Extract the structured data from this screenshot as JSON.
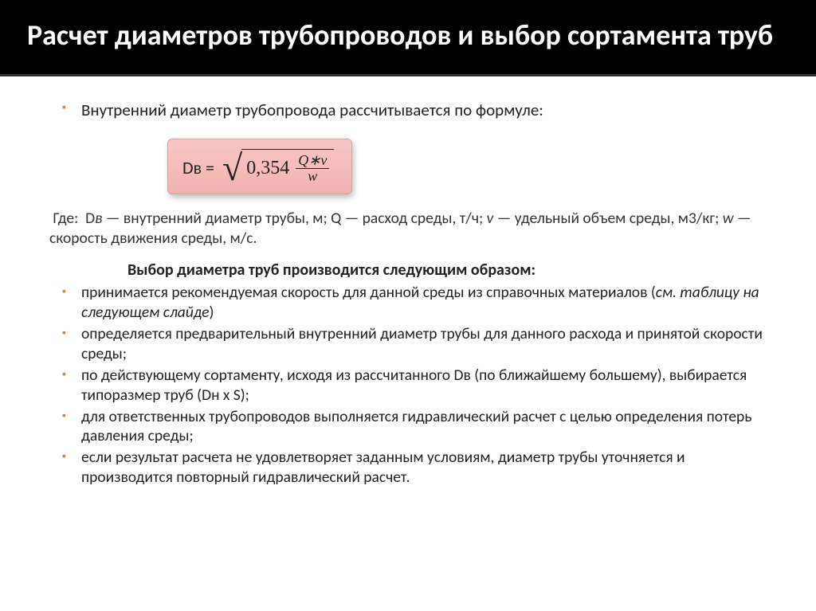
{
  "title": "Расчет диаметров трубопроводов и выбор сортамента труб",
  "intro": "Внутренний диаметр трубопровода рассчитывается по формуле:",
  "formula": {
    "lhs": "Dв =",
    "coef": "0,354",
    "num": "Q∗v",
    "den": "w"
  },
  "where_text": "Где:  Dв — внутренний диаметр трубы, м; Q — расход среды, т/ч; v — удельный объем среды, м3/кг; w — скорость движения среды, м/с.",
  "subhead": "Выбор диаметра труб производится следующим образом:",
  "steps": [
    "принимается рекомендуемая скорость для данной среды из справочных материалов (см. таблицу на следующем слайде)",
    "определяется предварительный внутренний диаметр трубы для данного расхода и принятой скорости среды;",
    "по действующему сортаменту, исходя из рассчитанного Dв (по ближайшему большему), выбирается типоразмер труб (Dн x S);",
    "для ответственных трубопроводов выполняется гидравлический расчет с целью определения потерь давления среды;",
    " если результат расчета не удовлетворяет заданным условиям, диаметр трубы уточняется и производится повторный гидравлический расчет."
  ],
  "colors": {
    "title_bg": "#000000",
    "title_fg": "#ffffff",
    "bullet": "#d68a2f",
    "formula_bg_top": "#f7c7c5",
    "formula_bg_bottom": "#f2b2b0"
  }
}
